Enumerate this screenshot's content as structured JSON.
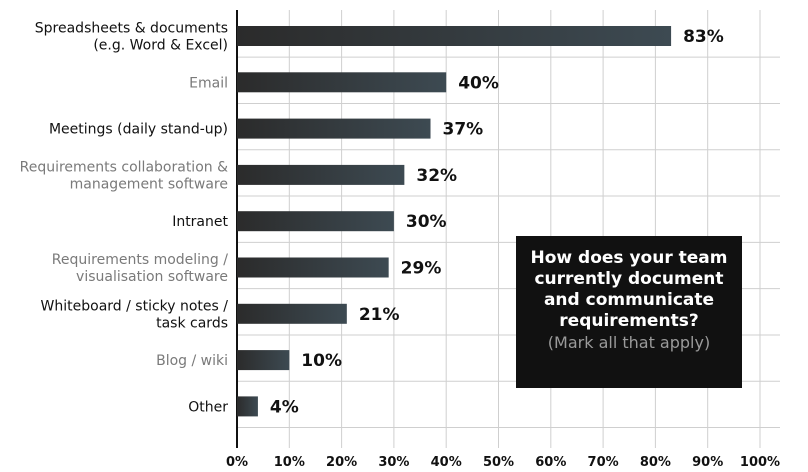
{
  "chart_data": {
    "type": "bar",
    "orientation": "horizontal",
    "title": "How does your team currently document and communicate requirements?",
    "subtitle": "(Mark all that apply)",
    "categories": [
      [
        "Spreadsheets & documents",
        "(e.g. Word & Excel)"
      ],
      [
        "Email"
      ],
      [
        "Meetings (daily stand-up)"
      ],
      [
        "Requirements collaboration &",
        "management software"
      ],
      [
        "Intranet"
      ],
      [
        "Requirements modeling /",
        "visualisation software"
      ],
      [
        "Whiteboard / sticky notes /",
        "task cards"
      ],
      [
        "Blog / wiki"
      ],
      [
        "Other"
      ]
    ],
    "values": [
      83,
      40,
      37,
      32,
      30,
      29,
      21,
      10,
      4
    ],
    "value_labels": [
      "83%",
      "40%",
      "37%",
      "32%",
      "30%",
      "29%",
      "21%",
      "10%",
      "4%"
    ],
    "xlim": [
      0,
      100
    ],
    "x_ticks": [
      "0%",
      "10%",
      "20%",
      "30%",
      "40%",
      "50%",
      "60%",
      "70%",
      "80%",
      "90%",
      "100%"
    ],
    "grid": true,
    "colors": {
      "bar": "#2b2b2b",
      "bar_end": "#3d4a52",
      "label_dark": "#111111",
      "label_gray": "#7a7a7a",
      "grid": "#cfcfcf",
      "box_bg": "#111111",
      "box_title": "#ffffff",
      "box_subtitle": "#9a9a9a"
    }
  }
}
